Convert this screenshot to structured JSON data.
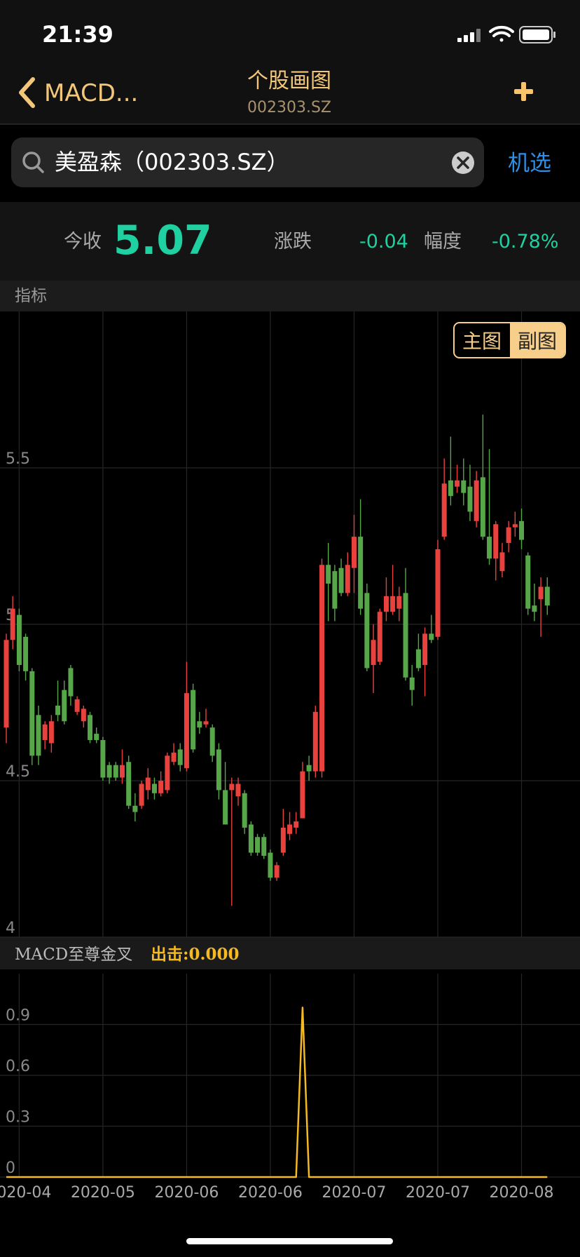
{
  "status_bar": {
    "time": "21:39"
  },
  "nav": {
    "back": "MACD...",
    "title": "个股画图",
    "subtitle": "002303.SZ"
  },
  "search": {
    "query": "美盈森（002303.SZ）",
    "action": "机选"
  },
  "quote": {
    "close_label": "今收",
    "close": "5.07",
    "change_label": "涨跌",
    "change": "-0.04",
    "pct_label": "幅度",
    "pct": "-0.78%"
  },
  "section_label": "指标",
  "toggle": [
    "主图",
    "副图"
  ],
  "chart_data": [
    {
      "type": "candlestick",
      "ylim": [
        4,
        6
      ],
      "yticks": [
        4,
        4.5,
        5,
        5.5
      ],
      "grid": true,
      "up_color": "#e8413e",
      "down_color": "#58a64a",
      "open": [
        4.67,
        4.95,
        5.03,
        4.96,
        4.85,
        4.71,
        4.63,
        4.62,
        4.74,
        4.79,
        4.86,
        4.72,
        4.69,
        4.71,
        4.65,
        4.63,
        4.55,
        4.55,
        4.51,
        4.56,
        4.42,
        4.42,
        4.47,
        4.49,
        4.46,
        4.47,
        4.56,
        4.6,
        4.54,
        4.79,
        4.69,
        4.68,
        4.67,
        4.6,
        4.47,
        4.47,
        4.45,
        4.46,
        4.36,
        4.32,
        4.32,
        4.27,
        4.19,
        4.27,
        4.33,
        4.35,
        4.38,
        4.55,
        4.53,
        4.53,
        5.19,
        5.17,
        5.18,
        5.1,
        5.18,
        5.28,
        5.1,
        4.87,
        4.88,
        5.04,
        5.04,
        5.05,
        5.1,
        4.83,
        4.92,
        4.87,
        4.97,
        4.96,
        5.28,
        5.46,
        5.44,
        5.46,
        5.44,
        5.33,
        5.47,
        5.28,
        5.21,
        5.17,
        5.26,
        5.31,
        5.33,
        5.22,
        5.06,
        5.08,
        5.12
      ],
      "high": [
        4.97,
        5.09,
        5.05,
        4.97,
        4.86,
        4.74,
        4.69,
        4.71,
        4.82,
        4.82,
        4.87,
        4.77,
        4.74,
        4.72,
        4.67,
        4.64,
        4.56,
        4.56,
        4.6,
        4.58,
        4.46,
        4.5,
        4.54,
        4.51,
        4.53,
        4.59,
        4.62,
        4.62,
        4.88,
        4.81,
        4.72,
        4.73,
        4.68,
        4.62,
        4.56,
        4.51,
        4.51,
        4.47,
        4.37,
        4.33,
        4.33,
        4.28,
        4.24,
        4.41,
        4.4,
        4.4,
        4.56,
        4.58,
        4.74,
        5.21,
        5.26,
        5.19,
        5.21,
        5.23,
        5.35,
        5.4,
        5.13,
        5.0,
        5.05,
        5.15,
        5.19,
        5.12,
        5.18,
        4.87,
        4.97,
        4.99,
        5.03,
        5.27,
        5.53,
        5.6,
        5.51,
        5.53,
        5.51,
        5.49,
        5.67,
        5.56,
        5.33,
        5.26,
        5.33,
        5.36,
        5.37,
        5.23,
        5.13,
        5.15,
        5.15
      ],
      "low": [
        4.62,
        4.92,
        4.85,
        4.82,
        4.55,
        4.55,
        4.6,
        4.59,
        4.69,
        4.68,
        4.74,
        4.71,
        4.67,
        4.62,
        4.62,
        4.5,
        4.49,
        4.5,
        4.49,
        4.41,
        4.37,
        4.41,
        4.44,
        4.44,
        4.45,
        4.46,
        4.55,
        4.53,
        4.53,
        4.59,
        4.65,
        4.67,
        4.56,
        4.44,
        4.36,
        4.1,
        4.42,
        4.33,
        4.26,
        4.26,
        4.25,
        4.18,
        4.18,
        4.26,
        4.31,
        4.33,
        4.38,
        4.5,
        4.51,
        4.51,
        5.01,
        5.01,
        5.09,
        5.09,
        5.1,
        5.03,
        4.85,
        4.78,
        4.87,
        5.01,
        5.03,
        5.01,
        4.82,
        4.74,
        4.85,
        4.77,
        4.94,
        4.95,
        5.27,
        5.38,
        5.42,
        5.38,
        5.33,
        5.31,
        5.27,
        5.19,
        5.14,
        5.15,
        5.23,
        5.28,
        5.24,
        5.03,
        5.01,
        4.96,
        5.03
      ],
      "close": [
        4.95,
        5.05,
        4.87,
        4.85,
        4.58,
        4.58,
        4.68,
        4.69,
        4.71,
        4.69,
        4.77,
        4.76,
        4.73,
        4.63,
        4.63,
        4.51,
        4.51,
        4.51,
        4.55,
        4.42,
        4.4,
        4.49,
        4.51,
        4.46,
        4.5,
        4.58,
        4.59,
        4.55,
        4.78,
        4.6,
        4.67,
        4.69,
        4.58,
        4.47,
        4.36,
        4.49,
        4.49,
        4.35,
        4.27,
        4.27,
        4.26,
        4.19,
        4.23,
        4.35,
        4.36,
        4.37,
        4.53,
        4.53,
        4.72,
        5.19,
        5.13,
        5.05,
        5.1,
        5.19,
        5.28,
        5.05,
        4.86,
        4.95,
        5.04,
        5.09,
        5.09,
        5.09,
        4.83,
        4.79,
        4.86,
        4.97,
        4.95,
        5.24,
        5.45,
        5.41,
        5.46,
        5.42,
        5.36,
        5.46,
        5.28,
        5.21,
        5.32,
        5.23,
        5.31,
        5.32,
        5.27,
        5.05,
        5.04,
        5.12,
        5.06
      ]
    },
    {
      "type": "line",
      "title": "MACD至尊金叉",
      "annotation": "出击:0.000",
      "ylim": [
        0,
        1.2
      ],
      "yticks": [
        0,
        0.3,
        0.6,
        0.9
      ],
      "grid": true,
      "categories": [
        null,
        null,
        "2020-04",
        null,
        null,
        null,
        null,
        null,
        null,
        null,
        null,
        null,
        null,
        null,
        null,
        "2020-05",
        null,
        null,
        null,
        null,
        null,
        null,
        null,
        null,
        null,
        null,
        null,
        null,
        "2020-06",
        null,
        null,
        null,
        null,
        null,
        null,
        null,
        null,
        null,
        null,
        null,
        null,
        "2020-06",
        null,
        null,
        null,
        null,
        null,
        null,
        null,
        null,
        null,
        null,
        null,
        null,
        "2020-07",
        null,
        null,
        null,
        null,
        null,
        null,
        null,
        null,
        null,
        null,
        null,
        null,
        "2020-07",
        null,
        null,
        null,
        null,
        null,
        null,
        null,
        null,
        null,
        null,
        null,
        null,
        "2020-08",
        null,
        null,
        null,
        null
      ],
      "series": [
        {
          "color": "#f5b921",
          "values": [
            0,
            0,
            0,
            0,
            0,
            0,
            0,
            0,
            0,
            0,
            0,
            0,
            0,
            0,
            0,
            0,
            0,
            0,
            0,
            0,
            0,
            0,
            0,
            0,
            0,
            0,
            0,
            0,
            0,
            0,
            0,
            0,
            0,
            0,
            0,
            0,
            0,
            0,
            0,
            0,
            0,
            0,
            0,
            0,
            0,
            0,
            1.0,
            0,
            0,
            0,
            0,
            0,
            0,
            0,
            0,
            0,
            0,
            0,
            0,
            0,
            0,
            0,
            0,
            0,
            0,
            0,
            0,
            0,
            0,
            0,
            0,
            0,
            0,
            0,
            0,
            0,
            0,
            0,
            0,
            0,
            0,
            0,
            0,
            0,
            0
          ]
        }
      ]
    }
  ]
}
